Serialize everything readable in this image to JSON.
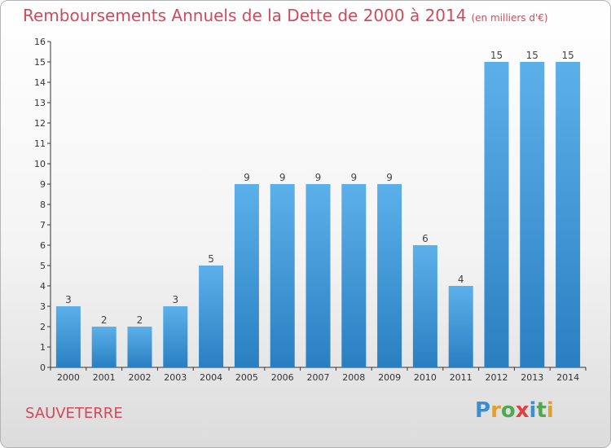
{
  "title": "Remboursements Annuels de la Dette de 2000 à 2014",
  "unit": "(en milliers d'€)",
  "commune": "SAUVETERRE",
  "logo_text": "Proxiti",
  "colors": {
    "title": "#d24a5a",
    "bar_top": "#5cb0ea",
    "bar_bottom": "#2a7fc1",
    "axis": "#333333"
  },
  "chart_data": {
    "type": "bar",
    "title": "Remboursements Annuels de la Dette de 2000 à 2014",
    "subtitle": "(en milliers d'€)",
    "categories": [
      "2000",
      "2001",
      "2002",
      "2003",
      "2004",
      "2005",
      "2006",
      "2007",
      "2008",
      "2009",
      "2010",
      "2011",
      "2012",
      "2013",
      "2014"
    ],
    "values": [
      3,
      2,
      2,
      3,
      5,
      9,
      9,
      9,
      9,
      9,
      6,
      4,
      15,
      15,
      15
    ],
    "data_labels": [
      "3",
      "2",
      "2",
      "3",
      "5",
      "9",
      "9",
      "9",
      "9",
      "9",
      "6",
      "4",
      "15",
      "15",
      "15"
    ],
    "y_ticks": [
      "0",
      "1",
      "2",
      "3",
      "4",
      "5",
      "6",
      "7",
      "8",
      "9",
      "10",
      "11",
      "12",
      "13",
      "14",
      "15",
      "16"
    ],
    "ylim": [
      0,
      16
    ],
    "grid": false,
    "xlabel": "",
    "ylabel": ""
  }
}
